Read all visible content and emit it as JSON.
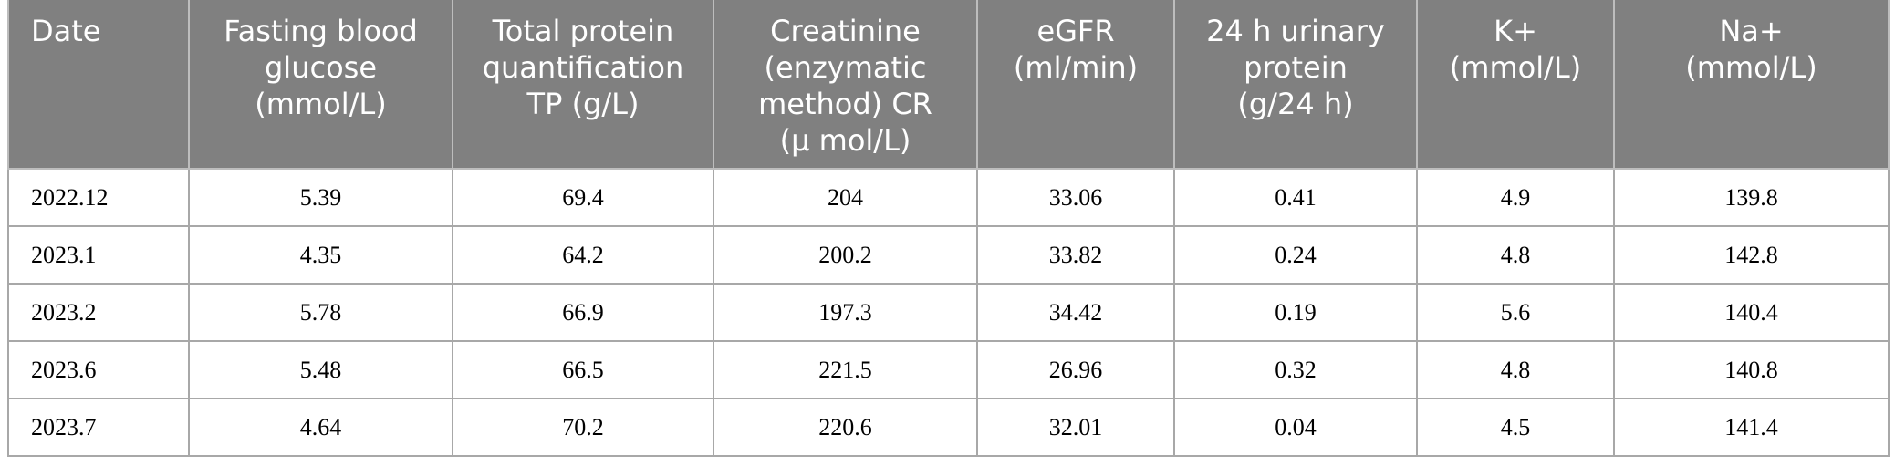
{
  "table": {
    "headers": [
      "Date",
      "Fasting blood\nglucose\n(mmol/L)",
      "Total protein\nquantification\nTP (g/L)",
      "Creatinine\n(enzymatic\nmethod) CR\n(μ mol/L)",
      "eGFR\n(ml/min)",
      "24 h urinary\nprotein\n(g/24 h)",
      "K+\n(mmol/L)",
      "Na+\n(mmol/L)"
    ],
    "rows": [
      [
        "2022.12",
        "5.39",
        "69.4",
        "204",
        "33.06",
        "0.41",
        "4.9",
        "139.8"
      ],
      [
        "2023.1",
        "4.35",
        "64.2",
        "200.2",
        "33.82",
        "0.24",
        "4.8",
        "142.8"
      ],
      [
        "2023.2",
        "5.78",
        "66.9",
        "197.3",
        "34.42",
        "0.19",
        "5.6",
        "140.4"
      ],
      [
        "2023.6",
        "5.48",
        "66.5",
        "221.5",
        "26.96",
        "0.32",
        "4.8",
        "140.8"
      ],
      [
        "2023.7",
        "4.64",
        "70.2",
        "220.6",
        "32.01",
        "0.04",
        "4.5",
        "141.4"
      ]
    ]
  }
}
